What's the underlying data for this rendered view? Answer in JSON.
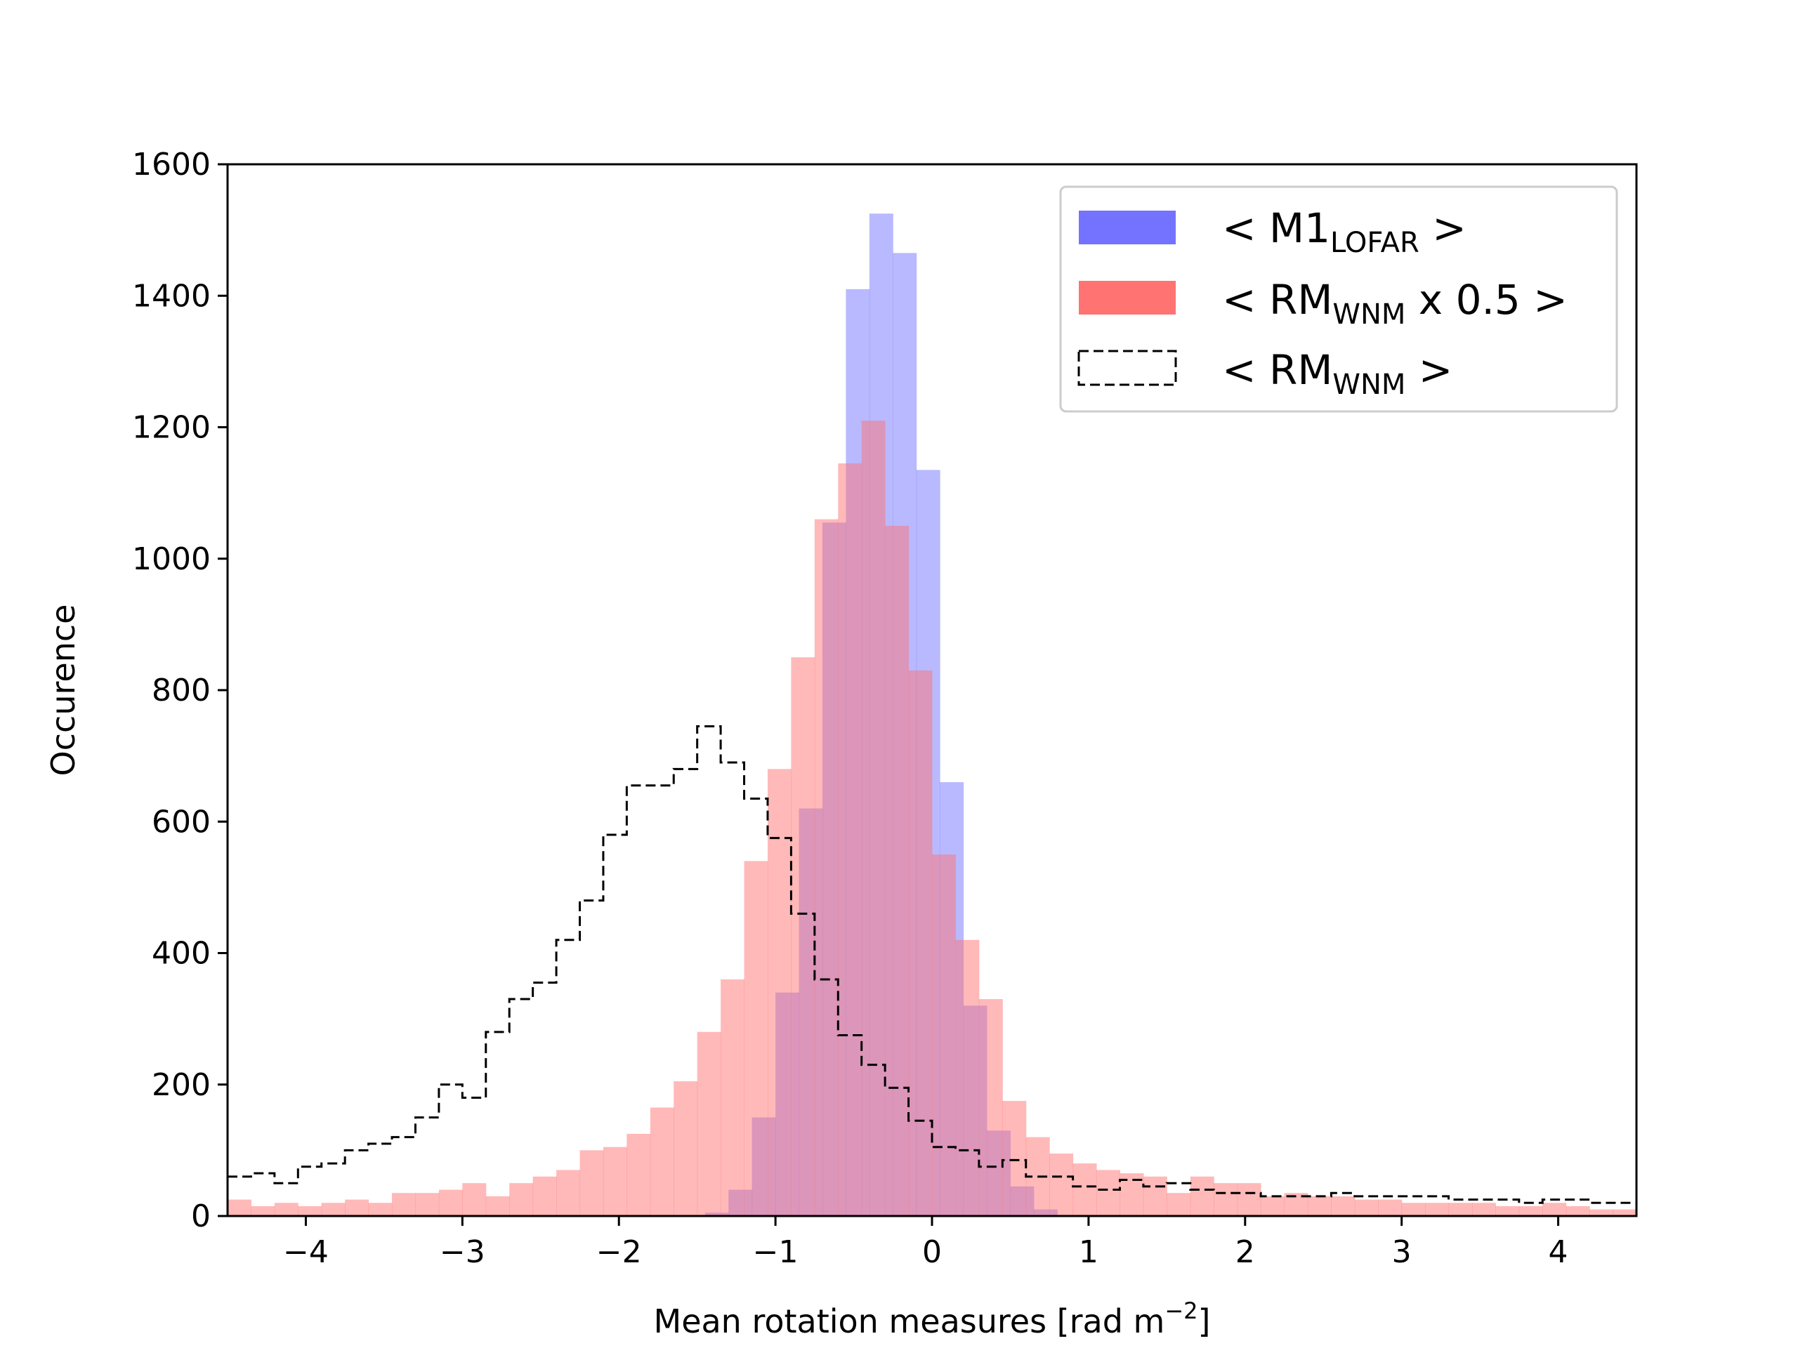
{
  "chart_data": {
    "type": "histogram",
    "xlabel": "Mean rotation measures [rad m",
    "xlabel_exponent": "−2",
    "xlabel_close": "]",
    "ylabel": "Occurence",
    "xlim": [
      -4.5,
      4.5
    ],
    "ylim": [
      0,
      1600
    ],
    "x_ticks": [
      -4,
      -3,
      -2,
      -1,
      0,
      1,
      2,
      3,
      4
    ],
    "x_tick_labels": [
      "−4",
      "−3",
      "−2",
      "−1",
      "0",
      "1",
      "2",
      "3",
      "4"
    ],
    "y_ticks": [
      0,
      200,
      400,
      600,
      800,
      1000,
      1200,
      1400,
      1600
    ],
    "y_tick_labels": [
      "0",
      "200",
      "400",
      "600",
      "800",
      "1000",
      "1200",
      "1400",
      "1600"
    ],
    "grid": false,
    "legend_position": "top-right",
    "series": [
      {
        "name_main": "< M1",
        "name_sub": "LOFAR",
        "name_end": " >",
        "style": "filled",
        "color": "#7373ff",
        "bin_edges": [
          -1.45,
          -1.3,
          -1.15,
          -1.0,
          -0.85,
          -0.7,
          -0.55,
          -0.4,
          -0.25,
          -0.1,
          0.05,
          0.2,
          0.35,
          0.5,
          0.65,
          0.8
        ],
        "counts": [
          5,
          40,
          150,
          340,
          620,
          1055,
          1410,
          1525,
          1465,
          1135,
          660,
          320,
          130,
          45,
          10
        ]
      },
      {
        "name_main": "< RM",
        "name_sub": "WNM",
        "name_end": " x 0.5 >",
        "style": "filled",
        "color": "#ff7373",
        "bin_edges": [
          -4.5,
          -4.35,
          -4.2,
          -4.05,
          -3.9,
          -3.75,
          -3.6,
          -3.45,
          -3.3,
          -3.15,
          -3.0,
          -2.85,
          -2.7,
          -2.55,
          -2.4,
          -2.25,
          -2.1,
          -1.95,
          -1.8,
          -1.65,
          -1.5,
          -1.35,
          -1.2,
          -1.05,
          -0.9,
          -0.75,
          -0.6,
          -0.45,
          -0.3,
          -0.15,
          0.0,
          0.15,
          0.3,
          0.45,
          0.6,
          0.75,
          0.9,
          1.05,
          1.2,
          1.35,
          1.5,
          1.65,
          1.8,
          1.95,
          2.1,
          2.25,
          2.4,
          2.55,
          2.7,
          2.85,
          3.0,
          3.15,
          3.3,
          3.45,
          3.6,
          3.75,
          3.9,
          4.05,
          4.2,
          4.35,
          4.5
        ],
        "counts": [
          25,
          15,
          20,
          15,
          20,
          25,
          20,
          35,
          35,
          40,
          50,
          30,
          50,
          60,
          70,
          100,
          105,
          125,
          165,
          205,
          280,
          360,
          540,
          680,
          850,
          1060,
          1145,
          1210,
          1050,
          830,
          550,
          420,
          330,
          175,
          120,
          95,
          80,
          70,
          65,
          60,
          35,
          60,
          50,
          50,
          30,
          35,
          30,
          30,
          25,
          25,
          20,
          20,
          20,
          20,
          15,
          15,
          20,
          15,
          10,
          10
        ]
      },
      {
        "name_main": "< RM",
        "name_sub": "WNM",
        "name_end": " >",
        "style": "dashed-step",
        "color": "#000000",
        "bin_edges": [
          -4.5,
          -4.35,
          -4.2,
          -4.05,
          -3.9,
          -3.75,
          -3.6,
          -3.45,
          -3.3,
          -3.15,
          -3.0,
          -2.85,
          -2.7,
          -2.55,
          -2.4,
          -2.25,
          -2.1,
          -1.95,
          -1.8,
          -1.65,
          -1.5,
          -1.35,
          -1.2,
          -1.05,
          -0.9,
          -0.75,
          -0.6,
          -0.45,
          -0.3,
          -0.15,
          0.0,
          0.15,
          0.3,
          0.45,
          0.6,
          0.75,
          0.9,
          1.05,
          1.2,
          1.35,
          1.5,
          1.65,
          1.8,
          1.95,
          2.1,
          2.25,
          2.4,
          2.55,
          2.7,
          2.85,
          3.0,
          3.15,
          3.3,
          3.45,
          3.6,
          3.75,
          3.9,
          4.05,
          4.2,
          4.35,
          4.5
        ],
        "counts": [
          60,
          65,
          50,
          75,
          80,
          100,
          110,
          120,
          150,
          200,
          180,
          280,
          330,
          355,
          420,
          480,
          580,
          655,
          655,
          680,
          745,
          690,
          635,
          575,
          460,
          360,
          275,
          230,
          195,
          145,
          105,
          100,
          75,
          85,
          60,
          60,
          45,
          40,
          55,
          45,
          50,
          40,
          35,
          35,
          30,
          30,
          30,
          35,
          30,
          30,
          30,
          30,
          25,
          25,
          25,
          20,
          25,
          25,
          20,
          20
        ]
      }
    ]
  }
}
